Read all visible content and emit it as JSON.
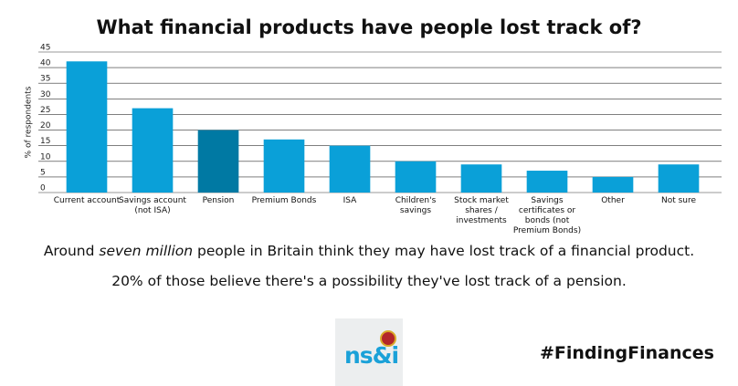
{
  "chart_data": {
    "type": "bar",
    "title": "What financial products have people lost track of?",
    "y_label": "% of respondents",
    "categories": [
      "Current account",
      "Savings account (not ISA)",
      "Pension",
      "Premium Bonds",
      "ISA",
      "Children's savings",
      "Stock market shares / investments",
      "Savings certificates or bonds (not Premium Bonds)",
      "Other",
      "Not sure"
    ],
    "values": [
      42,
      27,
      20,
      17,
      15,
      10,
      9,
      7,
      5,
      9
    ],
    "colors": [
      "#0aa0d8",
      "#0aa0d8",
      "#0079a3",
      "#0aa0d8",
      "#0aa0d8",
      "#0aa0d8",
      "#0aa0d8",
      "#0aa0d8",
      "#0aa0d8",
      "#0aa0d8"
    ],
    "ylim": [
      0,
      45
    ],
    "yticks": [
      0,
      5,
      10,
      15,
      20,
      25,
      30,
      35,
      40,
      45
    ],
    "grid": true
  },
  "notes": {
    "line1": [
      "Around",
      "seven million",
      "people in Britain think they may have lost track of a financial product."
    ],
    "line2": "20% of those believe there's a possibility they've lost track of a pension."
  },
  "logo": "ns&i",
  "hashtag": "#FindingFinances"
}
